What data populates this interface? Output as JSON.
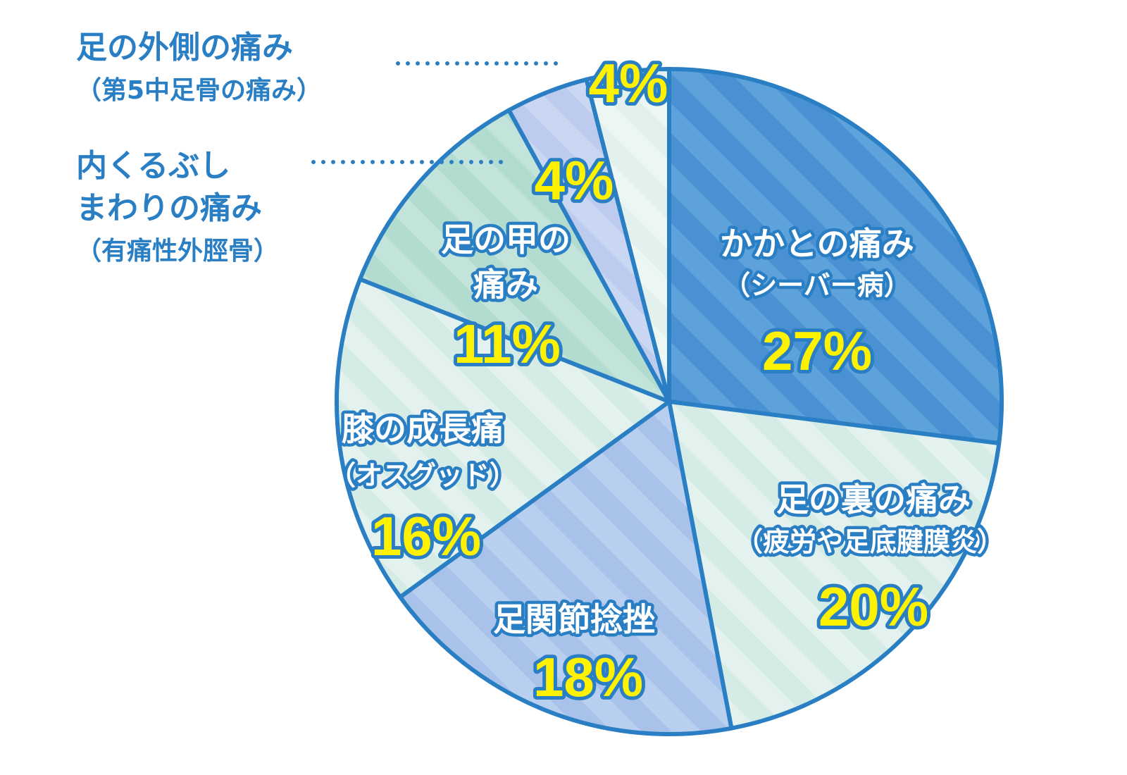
{
  "chart_data": {
    "type": "pie",
    "title": "",
    "start": "top",
    "direction": "clockwise",
    "slices": [
      {
        "label": "かかとの痛み",
        "sublabel": "（シーバー病）",
        "value": 27,
        "display": "27%",
        "color": "#4a91d3",
        "stripe": "#5ea2dc"
      },
      {
        "label": "足の裏の痛み",
        "sublabel": "（疲労や足底腱膜炎）",
        "value": 20,
        "display": "20%",
        "color": "#d5ebe6",
        "stripe": "#e3f2ee"
      },
      {
        "label": "足関節捻挫",
        "sublabel": "",
        "value": 18,
        "display": "18%",
        "color": "#a8c2ea",
        "stripe": "#b8cff0"
      },
      {
        "label": "膝の成長痛",
        "sublabel": "（オスグッド）",
        "value": 16,
        "display": "16%",
        "color": "#d5ebe6",
        "stripe": "#e3f2ee"
      },
      {
        "label": "足の甲の",
        "sublabel": "痛み",
        "value": 11,
        "display": "11%",
        "color": "#b3dcd0",
        "stripe": "#c3e4da"
      },
      {
        "label": "内くるぶし",
        "label2": "まわりの痛み",
        "sublabel": "（有痛性外脛骨）",
        "value": 4,
        "display": "4%",
        "color": "#bccbee",
        "stripe": "#cad7f2"
      },
      {
        "label": "足の外側の痛み",
        "sublabel": "（第5中足骨の痛み）",
        "value": 4,
        "display": "4%",
        "color": "#e2f1ee",
        "stripe": "#ecf6f3"
      }
    ],
    "border_color": "#2a7fc4",
    "percent_color": "#fff200"
  }
}
